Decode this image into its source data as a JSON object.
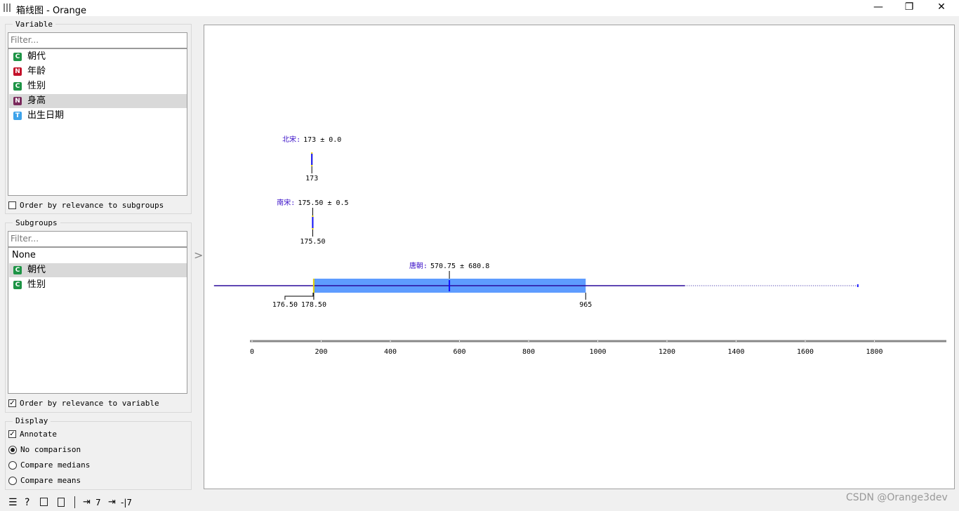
{
  "window": {
    "title": "箱线图 - Orange"
  },
  "variable": {
    "title": "Variable",
    "filter_placeholder": "Filter...",
    "items": [
      {
        "badge": "C",
        "label": "朝代"
      },
      {
        "badge": "N",
        "label": "年龄"
      },
      {
        "badge": "C",
        "label": "性别"
      },
      {
        "badge": "N",
        "label": "身高"
      },
      {
        "badge": "T",
        "label": "出生日期"
      }
    ],
    "selected": 3,
    "order": {
      "label": "Order by relevance to subgroups",
      "checked": false
    }
  },
  "subgroups": {
    "title": "Subgroups",
    "filter_placeholder": "Filter...",
    "items": [
      {
        "label": "None"
      },
      {
        "badge": "C",
        "label": "朝代"
      },
      {
        "badge": "C",
        "label": "性别"
      }
    ],
    "selected": 1,
    "order": {
      "label": "Order by relevance to variable",
      "checked": true
    }
  },
  "display": {
    "title": "Display",
    "annotate": {
      "label": "Annotate",
      "checked": true
    },
    "options": [
      "No comparison",
      "Compare medians",
      "Compare means"
    ],
    "selected": 0
  },
  "plot": {
    "type": "box",
    "xlim": [
      0,
      2000
    ],
    "xticks": [
      0,
      200,
      400,
      600,
      800,
      1000,
      1200,
      1400,
      1600,
      1800
    ],
    "groups": [
      {
        "name": "北宋:",
        "stats": "173 ± 0.0",
        "mean": 173,
        "sd": 0,
        "median": 173,
        "median_label": "173"
      },
      {
        "name": "南宋:",
        "stats": "175.50 ± 0.5",
        "mean": 175.5,
        "sd": 0.5,
        "median": 175.5,
        "median_label": "175.50"
      },
      {
        "name": "唐朝:",
        "stats": "570.75 ± 680.8",
        "mean": 570.75,
        "sd": 680.8,
        "q1": 176.5,
        "median": 178.5,
        "q3": 965,
        "max": 1752,
        "q1_label": "176.50",
        "median_label": "178.50",
        "q3_label": "965"
      }
    ]
  },
  "status": {
    "inputs": "7",
    "outputs": "-|7"
  },
  "watermark": "CSDN @Orange3dev"
}
